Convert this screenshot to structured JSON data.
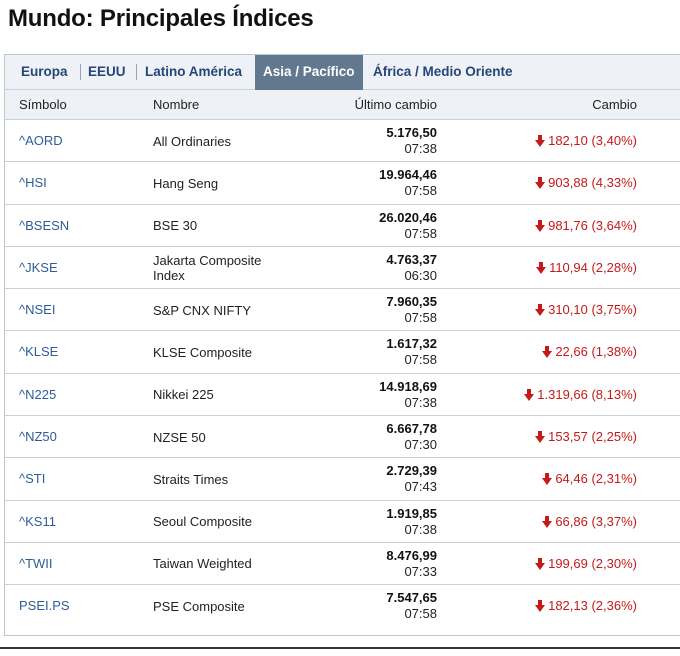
{
  "page": {
    "title": "Mundo: Principales Índices"
  },
  "tabs": [
    {
      "label": "Europa"
    },
    {
      "label": "EEUU"
    },
    {
      "label": "Latino América"
    },
    {
      "label": "Asia / Pacífico"
    },
    {
      "label": "África / Medio Oriente"
    }
  ],
  "active_tab": "Asia / Pacífico",
  "columns": {
    "symbol": "Símbolo",
    "name": "Nombre",
    "last": "Último cambio",
    "change": "Cambio"
  },
  "rows": [
    {
      "symbol": "^AORD",
      "name": "All Ordinaries",
      "value": "5.176,50",
      "time": "07:38",
      "change": "182,10 (3,40%)"
    },
    {
      "symbol": "^HSI",
      "name": "Hang Seng",
      "value": "19.964,46",
      "time": "07:58",
      "change": "903,88 (4,33%)"
    },
    {
      "symbol": "^BSESN",
      "name": "BSE 30",
      "value": "26.020,46",
      "time": "07:58",
      "change": "981,76 (3,64%)"
    },
    {
      "symbol": "^JKSE",
      "name": "Jakarta Composite Index",
      "value": "4.763,37",
      "time": "06:30",
      "change": "110,94 (2,28%)"
    },
    {
      "symbol": "^NSEI",
      "name": "S&P CNX NIFTY",
      "value": "7.960,35",
      "time": "07:58",
      "change": "310,10 (3,75%)"
    },
    {
      "symbol": "^KLSE",
      "name": "KLSE Composite",
      "value": "1.617,32",
      "time": "07:58",
      "change": "22,66 (1,38%)"
    },
    {
      "symbol": "^N225",
      "name": "Nikkei 225",
      "value": "14.918,69",
      "time": "07:38",
      "change": "1.319,66 (8,13%)"
    },
    {
      "symbol": "^NZ50",
      "name": "NZSE 50",
      "value": "6.667,78",
      "time": "07:30",
      "change": "153,57 (2,25%)"
    },
    {
      "symbol": "^STI",
      "name": "Straits Times",
      "value": "2.729,39",
      "time": "07:43",
      "change": "64,46 (2,31%)"
    },
    {
      "symbol": "^KS11",
      "name": "Seoul Composite",
      "value": "1.919,85",
      "time": "07:38",
      "change": "66,86 (3,37%)"
    },
    {
      "symbol": "^TWII",
      "name": "Taiwan Weighted",
      "value": "8.476,99",
      "time": "07:33",
      "change": "199,69 (2,30%)"
    },
    {
      "symbol": "PSEI.PS",
      "name": "PSE Composite",
      "value": "7.547,65",
      "time": "07:58",
      "change": "182,13 (2,36%)"
    }
  ],
  "icons": {
    "change_direction": "down-arrow-icon"
  },
  "colors": {
    "negative": "#c41a1a",
    "link": "#2d5c96",
    "active_tab_bg": "#62788f"
  }
}
